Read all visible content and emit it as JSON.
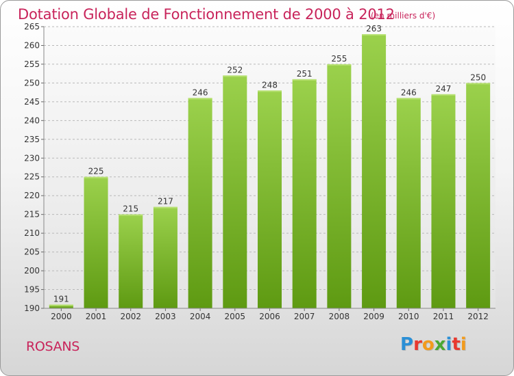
{
  "header": {
    "title": "Dotation Globale de Fonctionnement de 2000 à 2012",
    "subtitle": "(en milliers d'€)"
  },
  "footer": {
    "commune": "ROSANS",
    "logo_text": "Proxiti",
    "logo_colors": [
      "#2a8fd6",
      "#e8392f",
      "#f29b1d",
      "#4aa832",
      "#2a8fd6",
      "#e8392f",
      "#f29b1d"
    ]
  },
  "colors": {
    "accent": "#c8235a",
    "bar_top": "#9bd14c",
    "bar_bottom": "#5e9a12",
    "grid": "#b8b8b8",
    "plot_bg_top": "#fbfbfb",
    "plot_bg_bottom": "#e4e4e4"
  },
  "chart_data": {
    "type": "bar",
    "title": "Dotation Globale de Fonctionnement de 2000 à 2012",
    "subtitle": "(en milliers d'€)",
    "xlabel": "",
    "ylabel": "",
    "categories": [
      "2000",
      "2001",
      "2002",
      "2003",
      "2004",
      "2005",
      "2006",
      "2007",
      "2008",
      "2009",
      "2010",
      "2011",
      "2012"
    ],
    "values": [
      191,
      225,
      215,
      217,
      246,
      252,
      248,
      251,
      255,
      263,
      246,
      247,
      250
    ],
    "ylim": [
      190,
      265
    ],
    "yticks": [
      190,
      195,
      200,
      205,
      210,
      215,
      220,
      225,
      230,
      235,
      240,
      245,
      250,
      255,
      260,
      265
    ],
    "grid": true,
    "legend": "none"
  }
}
